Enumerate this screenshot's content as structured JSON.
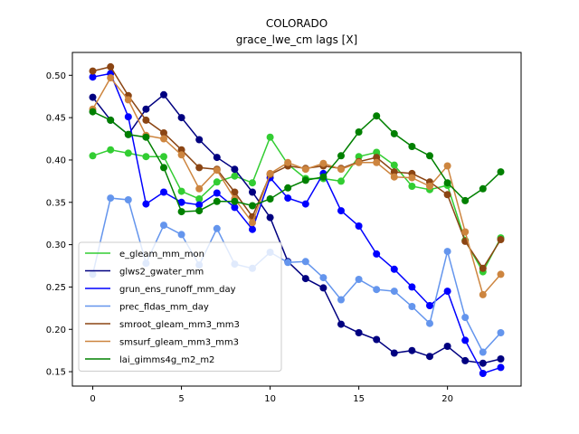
{
  "chart_data": {
    "type": "line",
    "title": "COLORADO",
    "subtitle": "grace_lwe_cm lags [X]",
    "xlabel": "",
    "ylabel": "",
    "xlim": [
      -1.15,
      24.15
    ],
    "ylim": [
      0.133,
      0.527
    ],
    "xticks": [
      0,
      5,
      10,
      15,
      20
    ],
    "yticks": [
      0.15,
      0.2,
      0.25,
      0.3,
      0.35,
      0.4,
      0.45,
      0.5
    ],
    "ytick_labels": [
      "0.15",
      "0.20",
      "0.25",
      "0.30",
      "0.35",
      "0.40",
      "0.45",
      "0.50"
    ],
    "grid": false,
    "legend_position": "lower-left",
    "x": [
      0,
      1,
      2,
      3,
      4,
      5,
      6,
      7,
      8,
      9,
      10,
      11,
      12,
      13,
      14,
      15,
      16,
      17,
      18,
      19,
      20,
      21,
      22,
      23
    ],
    "series": [
      {
        "name": "e_gleam_mm_mon",
        "color": "#32cd32",
        "values": [
          0.405,
          0.412,
          0.408,
          0.404,
          0.404,
          0.363,
          0.354,
          0.374,
          0.381,
          0.373,
          0.427,
          0.395,
          0.378,
          0.378,
          0.375,
          0.404,
          0.409,
          0.394,
          0.369,
          0.365,
          0.37,
          0.305,
          0.268,
          0.308
        ]
      },
      {
        "name": "glws2_gwater_mm",
        "color": "#000080",
        "values": [
          0.474,
          0.447,
          0.43,
          0.46,
          0.477,
          0.45,
          0.424,
          0.403,
          0.389,
          0.362,
          0.332,
          0.28,
          0.26,
          0.249,
          0.206,
          0.196,
          0.188,
          0.172,
          0.175,
          0.168,
          0.18,
          0.163,
          0.16,
          0.165
        ]
      },
      {
        "name": "grun_ens_runoff_mm_day",
        "color": "#0000ff",
        "values": [
          0.498,
          0.502,
          0.451,
          0.348,
          0.362,
          0.35,
          0.347,
          0.361,
          0.344,
          0.318,
          0.379,
          0.355,
          0.348,
          0.384,
          0.34,
          0.322,
          0.289,
          0.271,
          0.25,
          0.228,
          0.245,
          0.187,
          0.148,
          0.155
        ]
      },
      {
        "name": "prec_fldas_mm_day",
        "color": "#6495ed",
        "values": [
          0.265,
          0.355,
          0.353,
          0.278,
          0.323,
          0.312,
          0.276,
          0.319,
          0.277,
          0.272,
          0.291,
          0.279,
          0.28,
          0.261,
          0.235,
          0.259,
          0.247,
          0.245,
          0.227,
          0.207,
          0.292,
          0.214,
          0.173,
          0.196
        ]
      },
      {
        "name": "smroot_gleam_mm3_mm3",
        "color": "#8b4513",
        "values": [
          0.505,
          0.51,
          0.476,
          0.447,
          0.432,
          0.412,
          0.391,
          0.389,
          0.362,
          0.333,
          0.383,
          0.393,
          0.39,
          0.393,
          0.39,
          0.398,
          0.403,
          0.386,
          0.384,
          0.374,
          0.359,
          0.304,
          0.272,
          0.306
        ]
      },
      {
        "name": "smsurf_gleam_mm3_mm3",
        "color": "#cd853f",
        "values": [
          0.46,
          0.497,
          0.471,
          0.429,
          0.425,
          0.406,
          0.366,
          0.388,
          0.354,
          0.326,
          0.384,
          0.397,
          0.389,
          0.396,
          0.389,
          0.397,
          0.397,
          0.38,
          0.379,
          0.369,
          0.393,
          0.315,
          0.241,
          0.265
        ]
      },
      {
        "name": "lai_gimms4g_m2_m2",
        "color": "#008000",
        "values": [
          0.457,
          0.447,
          0.43,
          0.427,
          0.391,
          0.339,
          0.34,
          0.351,
          0.351,
          0.346,
          0.354,
          0.367,
          0.376,
          0.38,
          0.405,
          0.433,
          0.452,
          0.431,
          0.416,
          0.405,
          0.373,
          0.352,
          0.366,
          0.386
        ]
      }
    ]
  }
}
